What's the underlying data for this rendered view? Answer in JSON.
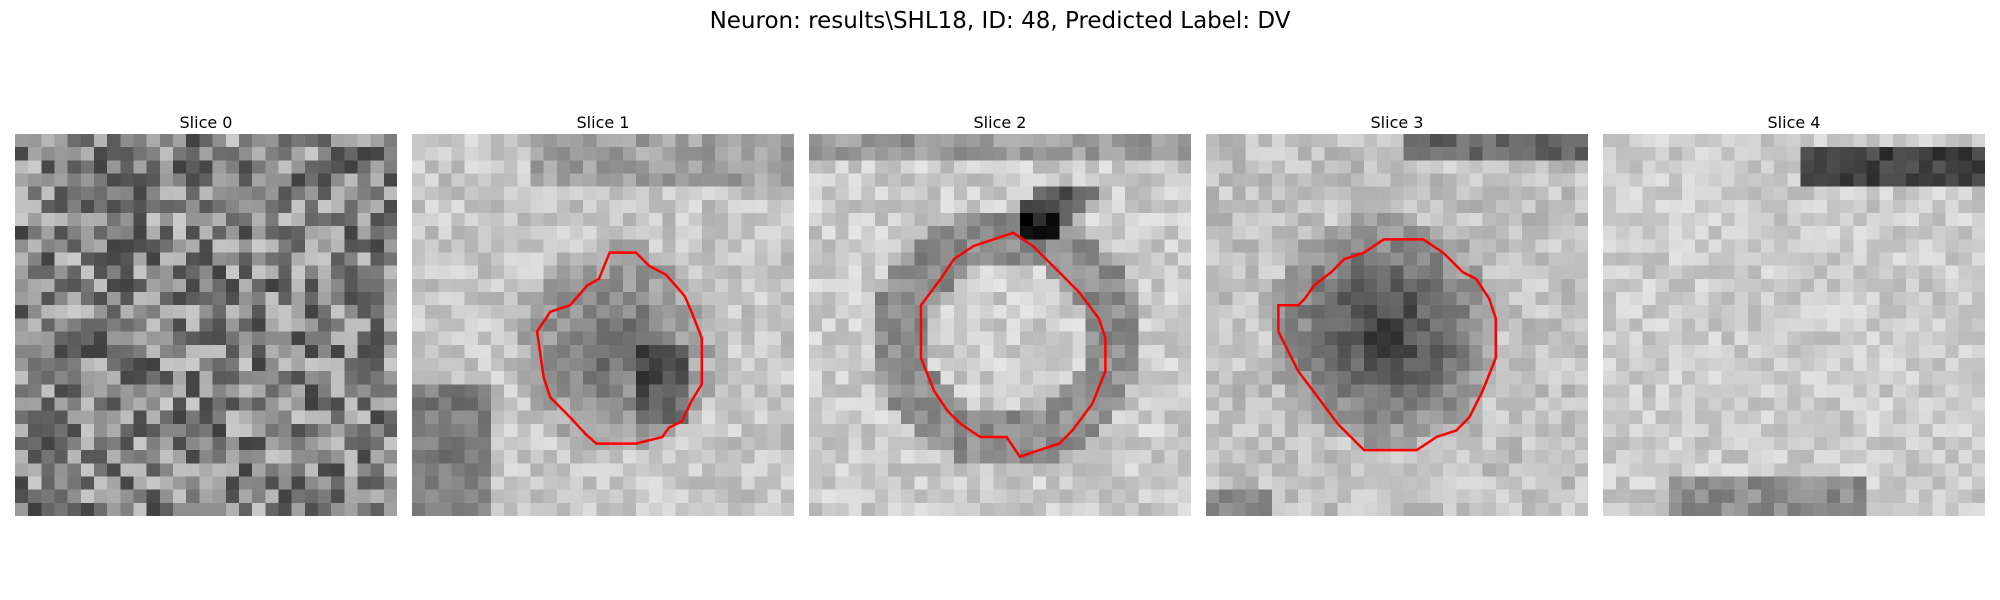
{
  "title": "Neuron: results\\SHL18, ID: 48, Predicted Label: DV",
  "slices": [
    {
      "label": "Slice 0",
      "contour": false
    },
    {
      "label": "Slice 1",
      "contour": true
    },
    {
      "label": "Slice 2",
      "contour": true
    },
    {
      "label": "Slice 3",
      "contour": true
    },
    {
      "label": "Slice 4",
      "contour": false
    }
  ],
  "colors": {
    "contour": "#ff0000",
    "background": "#ffffff"
  },
  "colormap": "gray"
}
